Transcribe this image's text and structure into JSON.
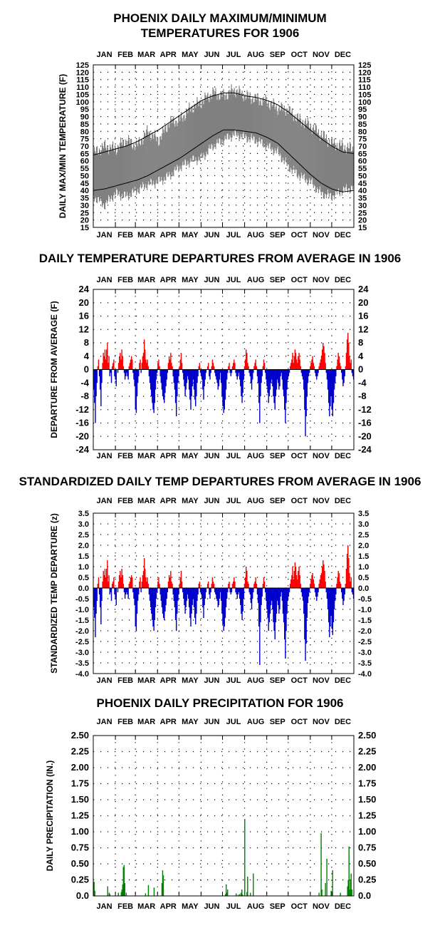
{
  "months": [
    "JAN",
    "FEB",
    "MAR",
    "APR",
    "MAY",
    "JUN",
    "JUL",
    "AUG",
    "SEP",
    "OCT",
    "NOV",
    "DEC"
  ],
  "colors": {
    "range_fill": "#808080",
    "normal_line": "#000000",
    "above": "#ff0000",
    "below": "#0000cc",
    "precip": "#008000",
    "grid": "#000000"
  },
  "chart_data": [
    {
      "id": "temps",
      "type": "area",
      "title": "PHOENIX DAILY MAXIMUM/MINIMUM",
      "title2": "TEMPERATURES FOR 1906",
      "ylabel": "DAILY MAX/MIN TEMPERATURE (F)",
      "xlabel": "",
      "x_ticks": [
        "JAN",
        "FEB",
        "MAR",
        "APR",
        "MAY",
        "JUN",
        "JUL",
        "AUG",
        "SEP",
        "OCT",
        "NOV",
        "DEC"
      ],
      "ylim": [
        15,
        125
      ],
      "yticks": [
        15,
        20,
        25,
        30,
        35,
        40,
        45,
        50,
        55,
        60,
        65,
        70,
        75,
        80,
        85,
        90,
        95,
        100,
        105,
        110,
        115,
        120,
        125
      ],
      "grid": true,
      "x": [
        "Jan 1",
        "Jan 16",
        "Feb 1",
        "Feb 15",
        "Mar 1",
        "Mar 16",
        "Apr 1",
        "Apr 16",
        "May 1",
        "May 16",
        "Jun 1",
        "Jun 16",
        "Jul 1",
        "Jul 16",
        "Aug 1",
        "Aug 16",
        "Sep 1",
        "Sep 16",
        "Oct 1",
        "Oct 16",
        "Nov 1",
        "Nov 16",
        "Dec 1",
        "Dec 16",
        "Dec 31"
      ],
      "series": [
        {
          "name": "Daily maximum",
          "values": [
            65,
            70,
            68,
            74,
            70,
            80,
            74,
            86,
            88,
            96,
            100,
            106,
            104,
            108,
            104,
            102,
            100,
            96,
            94,
            88,
            84,
            78,
            72,
            70,
            68
          ]
        },
        {
          "name": "Daily minimum",
          "values": [
            36,
            30,
            38,
            36,
            40,
            44,
            46,
            50,
            56,
            60,
            62,
            70,
            74,
            78,
            76,
            74,
            70,
            66,
            56,
            50,
            46,
            38,
            36,
            40,
            42
          ]
        },
        {
          "name": "Normal maximum",
          "values": [
            64,
            66,
            68,
            70,
            73,
            77,
            81,
            86,
            91,
            96,
            101,
            104,
            106,
            106,
            104,
            103,
            101,
            98,
            93,
            87,
            81,
            75,
            70,
            66,
            65
          ]
        },
        {
          "name": "Normal minimum",
          "values": [
            40,
            41,
            43,
            45,
            47,
            50,
            54,
            58,
            62,
            67,
            72,
            77,
            81,
            81,
            80,
            79,
            76,
            72,
            65,
            58,
            51,
            45,
            41,
            39,
            40
          ]
        }
      ]
    },
    {
      "id": "departures",
      "type": "bar",
      "title": "DAILY TEMPERATURE DEPARTURES FROM AVERAGE IN 1906",
      "ylabel": "DEPARTURE FROM AVERAGE (F)",
      "xlabel": "",
      "x_ticks": [
        "JAN",
        "FEB",
        "MAR",
        "APR",
        "MAY",
        "JUN",
        "JUL",
        "AUG",
        "SEP",
        "OCT",
        "NOV",
        "DEC"
      ],
      "ylim": [
        -24,
        24
      ],
      "yticks": [
        -24,
        -20,
        -16,
        -12,
        -8,
        -4,
        0,
        4,
        8,
        12,
        16,
        20,
        24
      ],
      "grid": true,
      "values": [
        -6,
        -10,
        -16,
        -8,
        -4,
        1,
        3,
        -2,
        -6,
        -11,
        -4,
        2,
        5,
        4,
        6,
        3,
        6,
        8,
        2,
        4,
        -2,
        -1,
        -4,
        1,
        2,
        3,
        -2,
        -3,
        -5,
        0,
        -1,
        2,
        4,
        5,
        3,
        6,
        4,
        1,
        -1,
        -3,
        -2,
        -1,
        -2,
        -3,
        1,
        2,
        3,
        4,
        3,
        -1,
        -3,
        -5,
        -12,
        -13,
        -8,
        -4,
        -2,
        2,
        3,
        -1,
        2,
        4,
        5,
        9,
        6,
        3,
        2,
        3,
        1,
        -2,
        -4,
        -6,
        -8,
        -10,
        -12,
        -13,
        -10,
        -6,
        -3,
        -1,
        2,
        3,
        1,
        -2,
        -4,
        -6,
        -8,
        -9,
        -10,
        -7,
        -5,
        -3,
        -1,
        2,
        4,
        3,
        5,
        2,
        1,
        -2,
        -4,
        -6,
        -10,
        -14,
        -8,
        -4,
        -2,
        1,
        3,
        5,
        2,
        -1,
        -3,
        -5,
        -8,
        -6,
        -4,
        -2,
        -3,
        -6,
        -9,
        -12,
        -8,
        -5,
        -3,
        -6,
        -9,
        -11,
        -8,
        -4,
        -2,
        1,
        2,
        -1,
        -2,
        -3,
        -6,
        -9,
        -5,
        -3,
        -1,
        0,
        1,
        2,
        -2,
        -3,
        -1,
        1,
        3,
        2,
        1,
        -1,
        -2,
        -3,
        -4,
        -6,
        -5,
        -3,
        -1,
        -4,
        -8,
        -11,
        -13,
        -12,
        -9,
        -6,
        -3,
        -1,
        1,
        2,
        -1,
        -2,
        -1,
        1,
        2,
        3,
        2,
        -1,
        -2,
        -3,
        -2,
        -1,
        -3,
        -5,
        -8,
        -10,
        -7,
        -3,
        1,
        3,
        6,
        5,
        2,
        1,
        -1,
        -2,
        -4,
        -6,
        -3,
        -1,
        1,
        2,
        3,
        1,
        -2,
        -4,
        -10,
        -16,
        -8,
        -4,
        -2,
        1,
        3,
        2,
        -1,
        -3,
        -5,
        -7,
        -10,
        -8,
        -6,
        -4,
        -3,
        -5,
        -8,
        -10,
        -12,
        -8,
        -6,
        -3,
        -4,
        -6,
        -5,
        -2,
        -1,
        -3,
        -6,
        -8,
        -12,
        -16,
        -10,
        -6,
        -3,
        -2,
        -1,
        1,
        2,
        3,
        5,
        2,
        4,
        6,
        5,
        3,
        2,
        4,
        5,
        3,
        1,
        -1,
        -2,
        -3,
        -6,
        -12,
        -20,
        -14,
        -8,
        -4,
        -2,
        -1,
        1,
        2,
        3,
        4,
        2,
        1,
        -1,
        -2,
        -3,
        -2,
        -1,
        1,
        2,
        3,
        4,
        6,
        8,
        7,
        5,
        2,
        -1,
        -3,
        -6,
        -10,
        -14,
        -11,
        -8,
        -12,
        -14,
        -10,
        -6,
        -4,
        -2,
        1,
        3,
        5,
        4,
        2,
        1,
        -1,
        -3,
        -5,
        -4,
        -2,
        1,
        5,
        9,
        11,
        8,
        4,
        2,
        3,
        -1,
        -2,
        -3
      ]
    },
    {
      "id": "standardized",
      "type": "bar",
      "title": "STANDARDIZED DAILY TEMP DEPARTURES FROM AVERAGE IN 1906",
      "ylabel": "STANDARDIZED TEMP DEPARTURE (z)",
      "xlabel": "",
      "x_ticks": [
        "JAN",
        "FEB",
        "MAR",
        "APR",
        "MAY",
        "JUN",
        "JUL",
        "AUG",
        "SEP",
        "OCT",
        "NOV",
        "DEC"
      ],
      "ylim": [
        -4.0,
        3.5
      ],
      "yticks": [
        -4.0,
        -3.5,
        -3.0,
        -2.5,
        -2.0,
        -1.5,
        -1.0,
        -0.5,
        0.0,
        0.5,
        1.0,
        1.5,
        2.0,
        2.5,
        3.0,
        3.5
      ],
      "ytick_labels": [
        "-4.0",
        "-3.5",
        "-3.0",
        "-2.5",
        "-2.0",
        "-1.5",
        "-1.0",
        "-0.5",
        "0.0",
        "0.5",
        "1.0",
        "1.5",
        "2.0",
        "2.5",
        "3.0",
        "3.5"
      ],
      "grid": true,
      "values": [
        -0.9,
        -1.4,
        -2.3,
        -1.2,
        -0.6,
        0.2,
        0.5,
        -0.3,
        -0.9,
        -1.7,
        -0.6,
        0.3,
        0.8,
        0.6,
        0.9,
        0.5,
        0.9,
        1.3,
        0.3,
        0.6,
        -0.3,
        -0.2,
        -0.6,
        0.2,
        0.3,
        0.5,
        -0.3,
        -0.5,
        -0.8,
        0.0,
        -0.2,
        0.3,
        0.6,
        0.8,
        0.5,
        0.9,
        0.6,
        0.2,
        -0.2,
        -0.5,
        -0.3,
        -0.2,
        -0.3,
        -0.5,
        0.2,
        0.3,
        0.5,
        0.6,
        0.5,
        -0.2,
        -0.5,
        -0.8,
        -1.8,
        -2.0,
        -1.2,
        -0.6,
        -0.3,
        0.3,
        0.5,
        -0.2,
        0.3,
        0.6,
        0.8,
        1.4,
        0.9,
        0.5,
        0.3,
        0.5,
        0.2,
        -0.3,
        -0.6,
        -0.9,
        -1.2,
        -1.5,
        -1.8,
        -2.0,
        -1.5,
        -0.9,
        -0.5,
        -0.2,
        0.3,
        0.5,
        0.2,
        -0.3,
        -0.6,
        -0.9,
        -1.2,
        -1.4,
        -1.5,
        -1.1,
        -0.8,
        -0.5,
        -0.2,
        0.3,
        0.6,
        0.5,
        0.8,
        0.3,
        0.2,
        -0.3,
        -0.6,
        -0.9,
        -1.5,
        -2.0,
        -1.2,
        -0.6,
        -0.3,
        0.2,
        0.5,
        0.8,
        0.3,
        -0.2,
        -0.5,
        -0.8,
        -1.2,
        -0.9,
        -0.6,
        -0.3,
        -0.5,
        -0.9,
        -1.4,
        -1.8,
        -1.2,
        -0.8,
        -0.5,
        -0.9,
        -1.4,
        -1.7,
        -1.2,
        -0.6,
        -0.3,
        0.2,
        0.3,
        -0.2,
        -0.3,
        -0.5,
        -0.9,
        -1.4,
        -0.8,
        -0.5,
        -0.2,
        0.0,
        0.2,
        0.3,
        -0.3,
        -0.5,
        -0.2,
        0.2,
        0.5,
        0.3,
        0.2,
        -0.2,
        -0.3,
        -0.5,
        -0.6,
        -0.9,
        -0.8,
        -0.5,
        -0.2,
        -0.6,
        -1.2,
        -1.7,
        -2.0,
        -1.8,
        -1.4,
        -0.9,
        -0.5,
        -0.2,
        0.2,
        0.3,
        -0.2,
        -0.3,
        -0.2,
        0.2,
        0.3,
        0.5,
        0.3,
        -0.2,
        -0.3,
        -0.5,
        -0.3,
        -0.2,
        -0.5,
        -0.8,
        -1.2,
        -1.5,
        -1.1,
        -0.5,
        0.2,
        0.5,
        1.0,
        0.8,
        0.3,
        0.2,
        -0.2,
        -0.3,
        -0.7,
        -1.0,
        -0.5,
        -0.2,
        0.2,
        0.3,
        0.5,
        0.2,
        -0.3,
        -0.7,
        -1.8,
        -3.6,
        -1.6,
        -0.8,
        -0.4,
        0.2,
        0.5,
        0.3,
        -0.2,
        -0.6,
        -1.0,
        -1.4,
        -2.0,
        -1.6,
        -1.2,
        -0.8,
        -0.6,
        -1.0,
        -1.6,
        -2.0,
        -2.4,
        -1.6,
        -1.2,
        -0.6,
        -0.8,
        -1.2,
        -1.0,
        -0.4,
        -0.2,
        -0.6,
        -1.2,
        -1.6,
        -2.4,
        -3.3,
        -2.0,
        -1.2,
        -0.6,
        -0.4,
        -0.2,
        0.2,
        0.4,
        0.6,
        1.0,
        0.4,
        0.8,
        1.2,
        1.0,
        0.6,
        0.4,
        0.8,
        1.0,
        0.6,
        0.2,
        -0.2,
        -0.4,
        -0.6,
        -1.2,
        -2.4,
        -3.4,
        -2.6,
        -1.4,
        -0.7,
        -0.4,
        -0.2,
        0.2,
        0.4,
        0.6,
        0.7,
        0.4,
        0.2,
        -0.2,
        -0.4,
        -0.6,
        -0.4,
        -0.2,
        0.2,
        0.4,
        0.6,
        0.7,
        1.0,
        1.3,
        1.1,
        0.8,
        0.3,
        -0.2,
        -0.5,
        -1.0,
        -1.6,
        -2.3,
        -1.8,
        -1.3,
        -1.9,
        -2.2,
        -1.6,
        -1.0,
        -0.6,
        -0.3,
        0.2,
        0.5,
        0.8,
        0.7,
        0.3,
        0.2,
        -0.2,
        -0.5,
        -0.8,
        -0.6,
        -0.3,
        0.2,
        0.9,
        1.6,
        2.0,
        1.4,
        0.7,
        0.3,
        0.5,
        -0.2,
        -0.3,
        -0.5
      ]
    },
    {
      "id": "precip",
      "type": "bar",
      "title": "PHOENIX DAILY PRECIPITATION FOR 1906",
      "ylabel": "DAILY PRECIPITATION (IN.)",
      "xlabel": "",
      "x_ticks": [
        "JAN",
        "FEB",
        "MAR",
        "APR",
        "MAY",
        "JUN",
        "JUL",
        "AUG",
        "SEP",
        "OCT",
        "NOV",
        "DEC"
      ],
      "ylim": [
        0.0,
        2.5
      ],
      "yticks": [
        0.0,
        0.25,
        0.5,
        0.75,
        1.0,
        1.25,
        1.5,
        1.75,
        2.0,
        2.25,
        2.5
      ],
      "ytick_labels": [
        "0.0",
        "0.25",
        "0.50",
        "0.75",
        "1.00",
        "1.25",
        "1.50",
        "1.75",
        "2.00",
        "2.25",
        "2.50"
      ],
      "grid": true,
      "days": [
        1,
        2,
        20,
        22,
        23,
        35,
        39,
        40,
        41,
        42,
        43,
        44,
        46,
        73,
        77,
        85,
        96,
        97,
        98,
        185,
        186,
        187,
        188,
        200,
        203,
        205,
        207,
        208,
        209,
        212,
        215,
        216,
        220,
        224,
        316,
        319,
        320,
        325,
        327,
        333,
        335,
        346,
        356,
        357,
        358,
        359,
        360,
        361,
        362
      ],
      "values": [
        0.22,
        0.08,
        0.15,
        0.05,
        0.03,
        0.05,
        0.06,
        0.1,
        0.18,
        0.45,
        0.48,
        0.2,
        0.05,
        0.04,
        0.17,
        0.13,
        0.2,
        0.4,
        0.32,
        0.03,
        0.18,
        0.05,
        0.1,
        0.04,
        0.02,
        0.03,
        0.05,
        0.1,
        0.02,
        1.2,
        0.06,
        0.3,
        0.05,
        0.35,
        0.05,
        0.98,
        0.1,
        0.2,
        0.58,
        0.08,
        0.4,
        0.05,
        0.15,
        0.25,
        0.77,
        0.1,
        0.25,
        0.35,
        0.1
      ]
    }
  ]
}
